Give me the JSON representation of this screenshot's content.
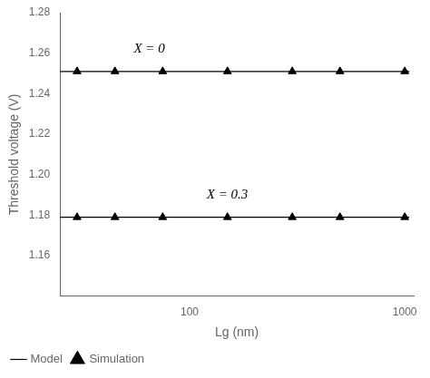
{
  "chart_data": {
    "type": "line",
    "xlabel": "Lg (nm)",
    "ylabel": "Threshold voltage (V)",
    "log": "x",
    "xlim": [
      25,
      1100
    ],
    "xticks": [
      100,
      1000
    ],
    "ylim": [
      1.14,
      1.28
    ],
    "yticks": [
      1.16,
      1.18,
      {
        "value": 1.2,
        "label": "1.20"
      },
      1.22,
      1.24,
      1.26,
      1.28
    ],
    "grid": false,
    "legend": "bottom",
    "series": [
      {
        "name": "Model",
        "type": "line",
        "color": "black",
        "line_style": "solid",
        "x": [
          25,
          1050
        ],
        "values": [
          1.251,
          1.251
        ]
      },
      {
        "name": "Model",
        "type": "line",
        "color": "black",
        "line_style": "solid",
        "x": [
          25,
          1050
        ],
        "values": [
          1.179,
          1.179
        ]
      },
      {
        "name": "Simulation",
        "type": "scatter",
        "color": "black",
        "marker": "triangle",
        "x": [
          30,
          45,
          75,
          150,
          300,
          500,
          1000
        ],
        "values": [
          1.251,
          1.251,
          1.251,
          1.251,
          1.251,
          1.251,
          1.251
        ]
      },
      {
        "name": "Simulation",
        "type": "scatter",
        "color": "black",
        "marker": "triangle",
        "x": [
          30,
          45,
          75,
          150,
          300,
          500,
          1000
        ],
        "values": [
          1.179,
          1.179,
          1.179,
          1.179,
          1.179,
          1.179,
          1.179
        ]
      }
    ],
    "annotations": [
      {
        "text": "X = 0",
        "x": 55,
        "y": 1.262
      },
      {
        "text": "X = 0.3",
        "x": 120,
        "y": 1.19
      }
    ]
  }
}
